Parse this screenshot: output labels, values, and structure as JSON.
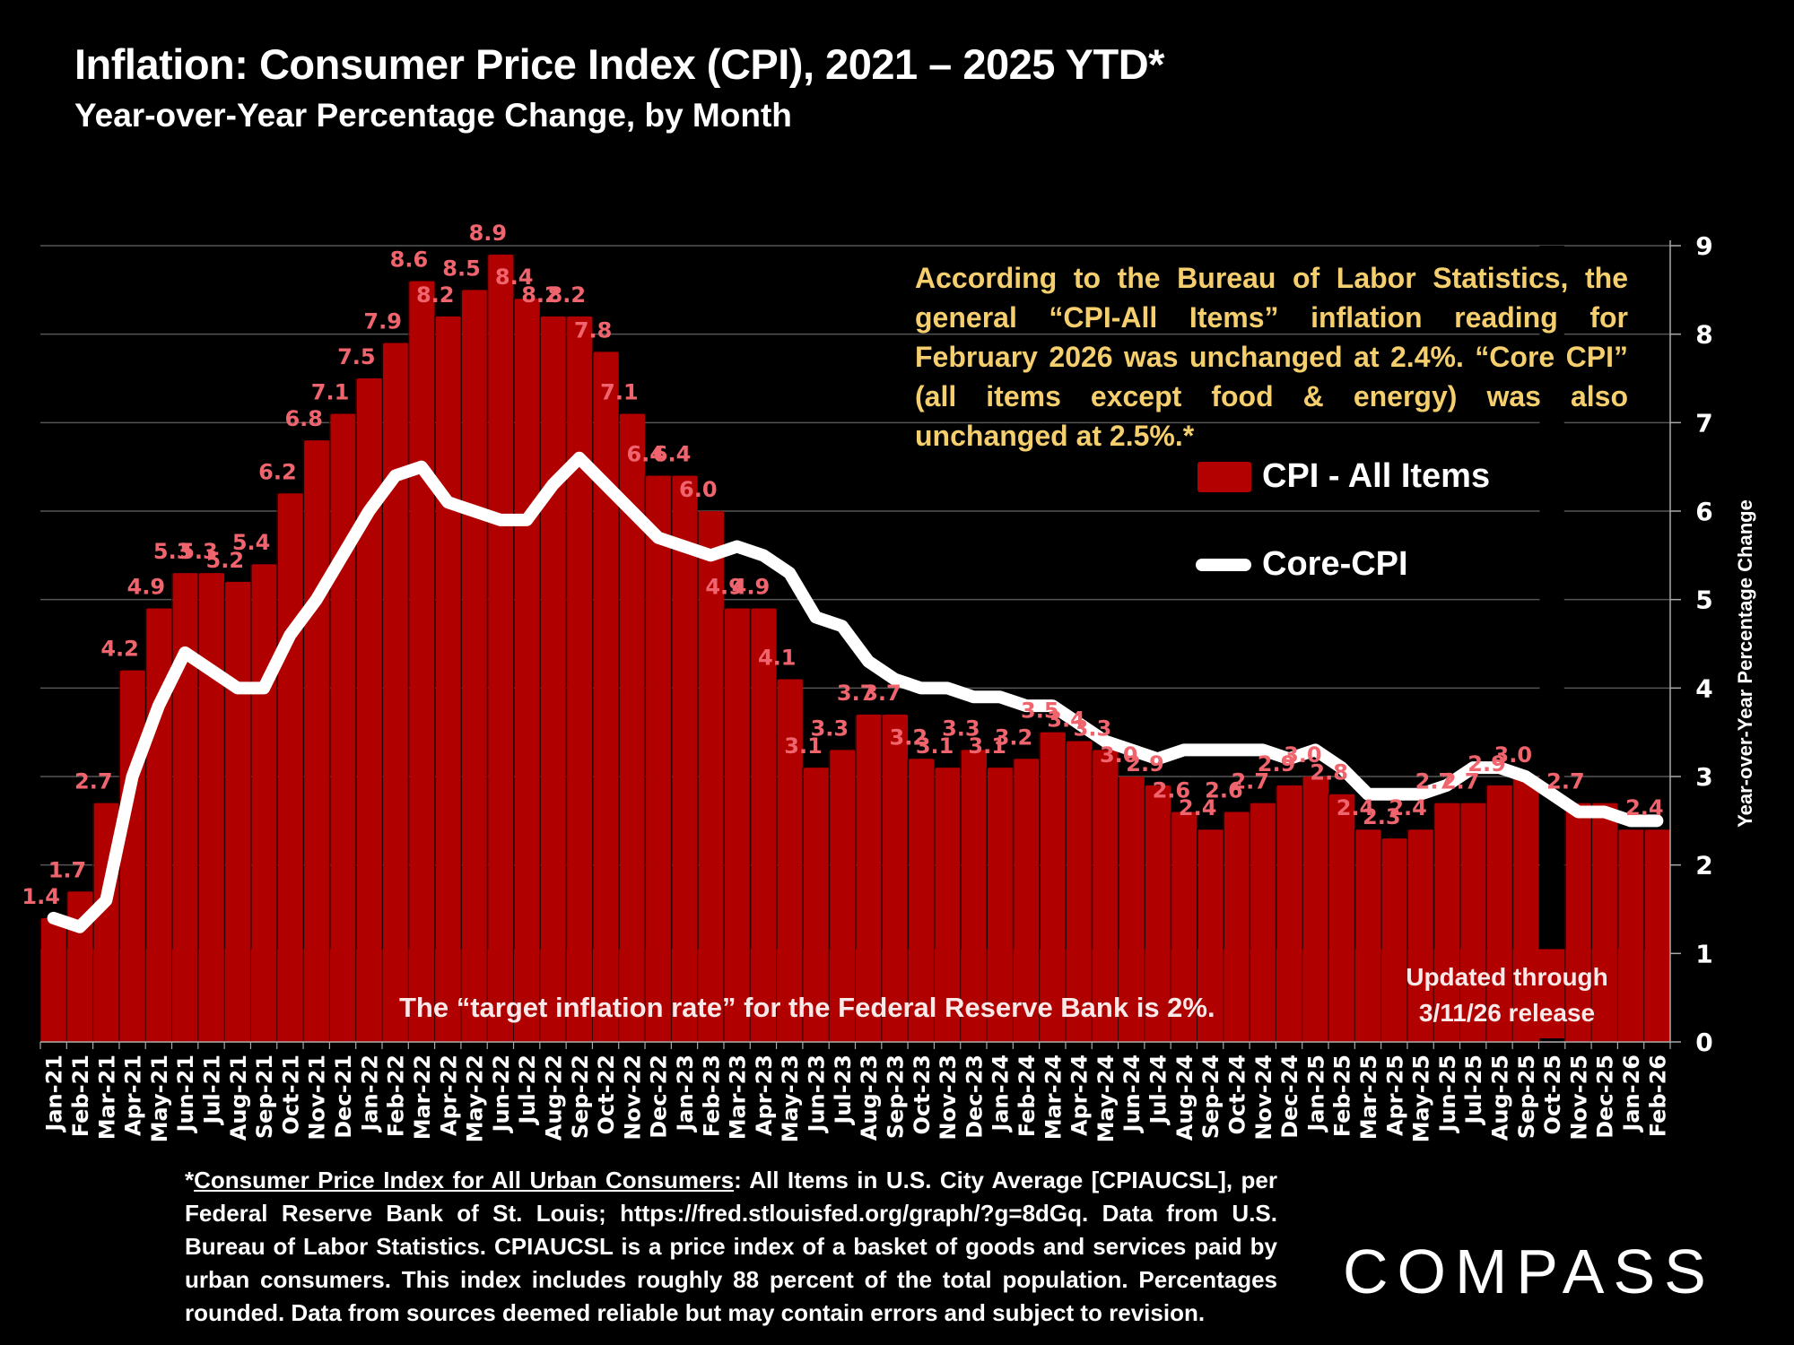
{
  "header": {
    "title": "Inflation: Consumer Price Index (CPI), 2021 – 2025 YTD*",
    "subtitle": "Year-over-Year Percentage Change, by Month"
  },
  "annotation": {
    "bls_note": "According to the Bureau of Labor Statistics, the general “CPI-All Items” inflation reading for February 2026 was unchanged at 2.4%. “Core CPI” (all items except food & energy) was also unchanged at 2.5%.*",
    "target_rate": "The “target inflation rate” for the Federal Reserve Bank is 2%.",
    "updated_line1": "Updated through",
    "updated_line2": "3/11/26 release"
  },
  "legend": {
    "cpi_label": "CPI - All Items",
    "core_label": "Core-CPI"
  },
  "footnote": {
    "link_text": "Consumer Price Index for All Urban Consumers",
    "prefix": "*",
    "body": ": All Items in U.S. City Average [CPIAUCSL], per Federal Reserve Bank of St. Louis; https://fred.stlouisfed.org/graph/?g=8dGq. Data from U.S. Bureau of Labor Statistics. CPIAUCSL is a price index of a basket of goods and services paid by urban consumers. This index includes roughly 88 percent of the total population. Percentages rounded. Data from sources deemed reliable but may contain errors and subject to revision."
  },
  "logo": {
    "text": "COMPASS"
  },
  "colors": {
    "bar": "#b00000",
    "bar_label": "#f0646e",
    "core_line": "#ffffff",
    "note_text": "#f5cf6e",
    "gridline": "#555555"
  },
  "chart_data": {
    "type": "bar",
    "title": "Inflation: Consumer Price Index (CPI), 2021 – 2025 YTD*",
    "subtitle": "Year-over-Year Percentage Change, by Month",
    "xlabel": "",
    "ylabel": "Year-over-Year Percentage Change",
    "y_axis_side": "right",
    "ylim": [
      0,
      9
    ],
    "yticks": [
      0,
      1,
      2,
      3,
      4,
      5,
      6,
      7,
      8,
      9
    ],
    "grid": true,
    "legend_position": "right",
    "target_band": [
      0,
      1.05
    ],
    "categories": [
      "Jan-21",
      "Feb-21",
      "Mar-21",
      "Apr-21",
      "May-21",
      "Jun-21",
      "Jul-21",
      "Aug-21",
      "Sep-21",
      "Oct-21",
      "Nov-21",
      "Dec-21",
      "Jan-22",
      "Feb-22",
      "Mar-22",
      "Apr-22",
      "May-22",
      "Jun-22",
      "Jul-22",
      "Aug-22",
      "Sep-22",
      "Oct-22",
      "Nov-22",
      "Dec-22",
      "Jan-23",
      "Feb-23",
      "Mar-23",
      "Apr-23",
      "May-23",
      "Jun-23",
      "Jul-23",
      "Aug-23",
      "Sep-23",
      "Oct-23",
      "Nov-23",
      "Dec-23",
      "Jan-24",
      "Feb-24",
      "Mar-24",
      "Apr-24",
      "May-24",
      "Jun-24",
      "Jul-24",
      "Aug-24",
      "Sep-24",
      "Oct-24",
      "Nov-24",
      "Dec-24",
      "Jan-25",
      "Feb-25",
      "Mar-25",
      "Apr-25",
      "May-25",
      "Jun-25",
      "Jul-25",
      "Aug-25",
      "Sep-25",
      "Oct-25",
      "Nov-25",
      "Dec-25",
      "Jan-26",
      "Feb-26"
    ],
    "series": [
      {
        "name": "CPI - All Items",
        "kind": "bar",
        "values": [
          1.4,
          1.7,
          2.7,
          4.2,
          4.9,
          5.3,
          5.3,
          5.2,
          5.4,
          6.2,
          6.8,
          7.1,
          7.5,
          7.9,
          8.6,
          8.2,
          8.5,
          8.9,
          8.4,
          8.2,
          8.2,
          7.8,
          7.1,
          6.4,
          6.4,
          6.0,
          4.9,
          4.9,
          4.1,
          3.1,
          3.3,
          3.7,
          3.7,
          3.2,
          3.1,
          3.3,
          3.1,
          3.2,
          3.5,
          3.4,
          3.3,
          3.0,
          2.9,
          2.6,
          2.4,
          2.6,
          2.7,
          2.9,
          3.0,
          2.8,
          2.4,
          2.3,
          2.4,
          2.7,
          2.7,
          2.9,
          3.0,
          null,
          2.7,
          2.7,
          2.4,
          2.4
        ],
        "labels": [
          "1.4",
          "1.7",
          "2.7",
          "4.2",
          "4.9",
          "5.3",
          "5.3",
          "5.2",
          "5.4",
          "6.2",
          "6.8",
          "7.1",
          "7.5",
          "7.9",
          "8.6",
          "8.2",
          "8.5",
          "8.9",
          "8.4",
          "8.2",
          "8.2",
          "7.8",
          "7.1",
          "6.4",
          "6.4",
          "6.0",
          "4.9",
          "4.9",
          "4.1",
          "3.1",
          "3.3",
          "3.7",
          "3.7",
          "3.2",
          "3.1",
          "3.3",
          "3.1",
          "3.2",
          "3.5",
          "3.4",
          "3.3",
          "3.0",
          "2.9",
          "2.6",
          "2.4",
          "2.6",
          "2.7",
          "2.9",
          "3.0",
          "2.8",
          "2.4",
          "2.3",
          "2.4",
          "2.7",
          "2.7",
          "2.9",
          "3.0",
          "",
          "2.7",
          "",
          "",
          "2.4"
        ]
      },
      {
        "name": "Core-CPI",
        "kind": "line",
        "values": [
          1.4,
          1.3,
          1.6,
          3.0,
          3.8,
          4.4,
          4.2,
          4.0,
          4.0,
          4.6,
          5.0,
          5.5,
          6.0,
          6.4,
          6.5,
          6.1,
          6.0,
          5.9,
          5.9,
          6.3,
          6.6,
          6.3,
          6.0,
          5.7,
          5.6,
          5.5,
          5.6,
          5.5,
          5.3,
          4.8,
          4.7,
          4.3,
          4.1,
          4.0,
          4.0,
          3.9,
          3.9,
          3.8,
          3.8,
          3.6,
          3.4,
          3.3,
          3.2,
          3.3,
          3.3,
          3.3,
          3.3,
          3.2,
          3.3,
          3.1,
          2.8,
          2.8,
          2.8,
          2.9,
          3.1,
          3.1,
          3.0,
          2.8,
          2.6,
          2.6,
          2.5,
          2.5
        ]
      }
    ]
  }
}
